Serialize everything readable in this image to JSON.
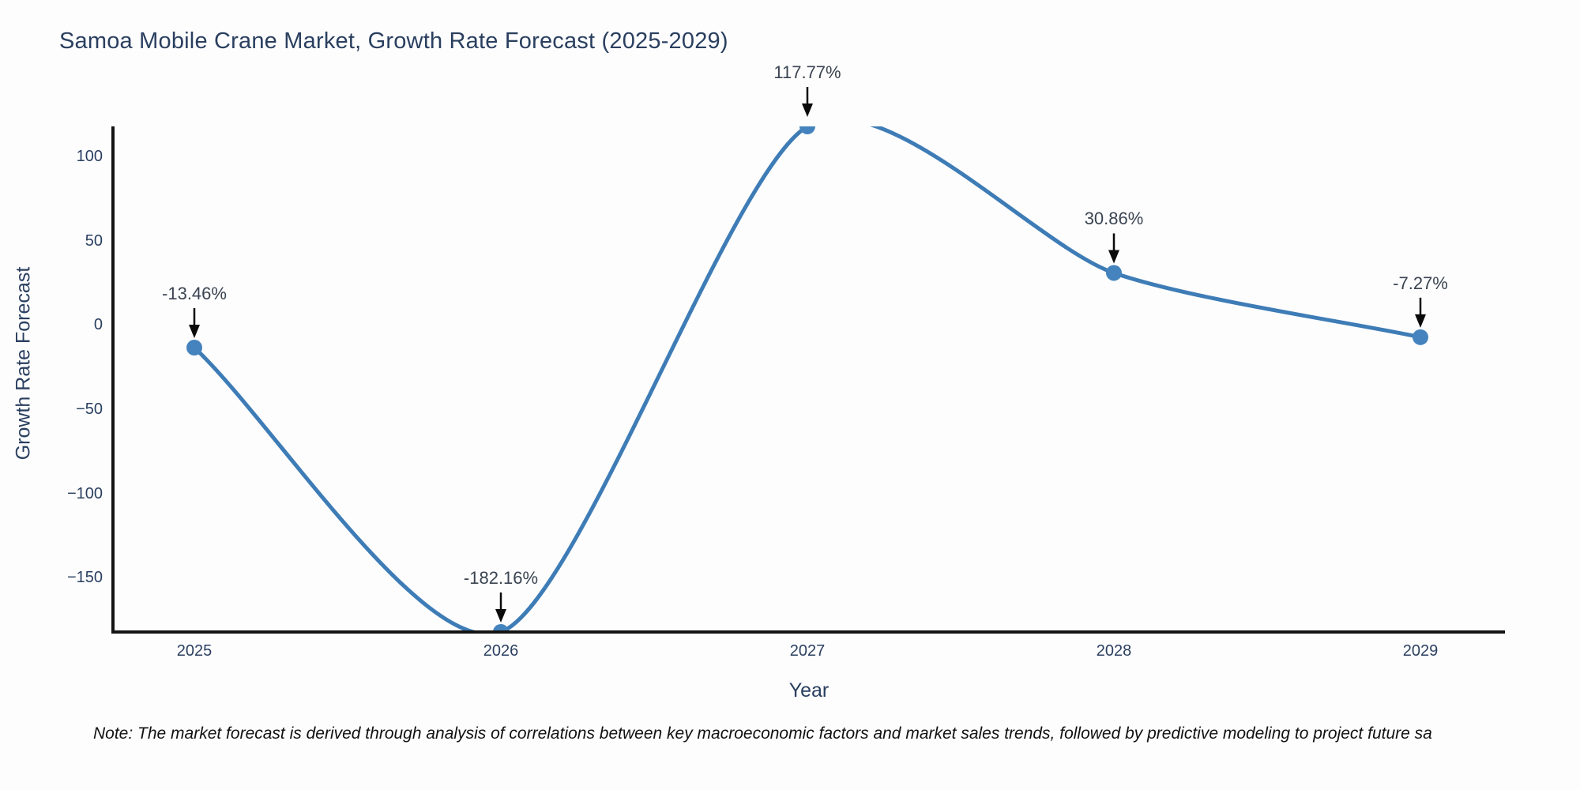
{
  "title": "Samoa Mobile Crane Market, Growth Rate Forecast (2025-2029)",
  "note": "Note: The market forecast is derived through analysis of correlations between key macroeconomic factors and market sales trends, followed by predictive modeling to project future sa",
  "chart_data": {
    "type": "line",
    "title": "Samoa Mobile Crane Market, Growth Rate Forecast (2025-2029)",
    "xlabel": "Year",
    "ylabel": "Growth Rate Forecast",
    "x": [
      2025,
      2026,
      2027,
      2028,
      2029
    ],
    "values": [
      -13.46,
      -182.16,
      117.77,
      30.86,
      -7.27
    ],
    "point_labels": [
      "-13.46%",
      "-182.16%",
      "117.77%",
      "30.86%",
      "-7.27%"
    ],
    "xtick_labels": [
      "2025",
      "2026",
      "2027",
      "2028",
      "2029"
    ],
    "yticks": [
      100,
      50,
      0,
      -50,
      -100,
      -150
    ],
    "ytick_labels": [
      "100",
      "50",
      "0",
      "−50",
      "−100",
      "−150"
    ],
    "ylim": [
      -182.16,
      117.77
    ],
    "line_shape": "spline",
    "grid": false,
    "legend": "none",
    "line_color": "#3e7cb6",
    "marker_color": "#4483bd",
    "axis_color": "#141414",
    "text_color": "#2a3f5f",
    "annotation_arrow_color": "#0a0a0a"
  }
}
